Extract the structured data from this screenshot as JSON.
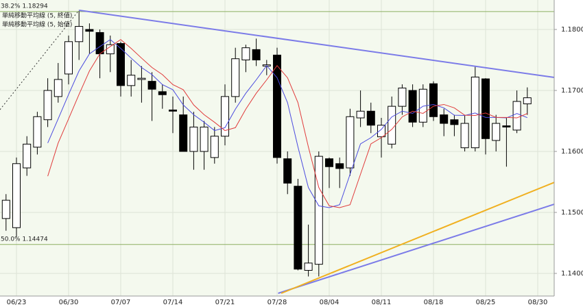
{
  "chart_data": {
    "type": "candlestick",
    "categories": [
      null,
      "06/23",
      null,
      null,
      null,
      null,
      "06/30",
      null,
      null,
      null,
      null,
      "07/07",
      null,
      null,
      null,
      null,
      "07/14",
      null,
      null,
      null,
      null,
      "07/21",
      null,
      null,
      null,
      null,
      "07/28",
      null,
      null,
      null,
      null,
      "08/04",
      null,
      null,
      null,
      null,
      "08/11",
      null,
      null,
      null,
      null,
      "08/18",
      null,
      null,
      null,
      null,
      "08/25",
      null,
      null,
      null,
      null,
      "08/30"
    ],
    "open": [
      1.149,
      1.1475,
      1.1573,
      1.1607,
      1.1652,
      1.169,
      1.1727,
      1.178,
      1.18,
      1.1795,
      1.176,
      1.1777,
      1.1708,
      1.1718,
      1.1715,
      1.1698,
      1.1668,
      1.166,
      1.16,
      1.16,
      1.159,
      1.1625,
      1.169,
      1.175,
      1.1767,
      1.174,
      1.1758,
      1.1588,
      1.1543,
      1.1405,
      1.1415,
      1.1588,
      1.158,
      1.1573,
      1.1655,
      1.1666,
      1.1624,
      1.1612,
      1.1674,
      1.17,
      1.1648,
      1.1711,
      1.166,
      1.1652,
      1.1606,
      1.1606,
      1.1719,
      1.1618,
      1.1642,
      1.1635,
      1.1678,
      null
    ],
    "high": [
      1.153,
      1.159,
      1.1625,
      1.1665,
      1.172,
      1.1745,
      1.179,
      1.183,
      1.181,
      1.18,
      1.179,
      1.178,
      1.175,
      1.174,
      1.173,
      1.171,
      1.169,
      1.169,
      1.1665,
      1.165,
      1.164,
      1.171,
      1.177,
      1.1775,
      1.1785,
      1.175,
      1.177,
      1.16,
      1.1555,
      1.148,
      1.16,
      1.159,
      1.159,
      1.167,
      1.17,
      1.168,
      1.1655,
      1.169,
      1.171,
      1.171,
      1.171,
      1.1715,
      1.167,
      1.166,
      1.166,
      1.174,
      1.172,
      1.166,
      1.1655,
      1.17,
      1.1705,
      null
    ],
    "low": [
      1.147,
      1.146,
      1.156,
      1.1595,
      1.164,
      1.168,
      1.171,
      1.175,
      1.176,
      1.172,
      1.173,
      1.169,
      1.169,
      1.168,
      1.165,
      1.167,
      1.163,
      1.16,
      1.157,
      1.157,
      1.158,
      1.161,
      1.168,
      1.173,
      1.174,
      1.1725,
      1.158,
      1.153,
      1.1405,
      1.1395,
      1.1395,
      1.154,
      1.154,
      1.156,
      1.164,
      1.163,
      1.159,
      1.1605,
      1.166,
      1.164,
      1.164,
      1.165,
      1.1625,
      1.1625,
      1.16,
      1.16,
      1.1595,
      1.16,
      1.1575,
      1.163,
      1.166,
      null
    ],
    "close": [
      1.152,
      1.158,
      1.1612,
      1.1657,
      1.17,
      1.1718,
      1.178,
      1.1805,
      1.1797,
      1.176,
      1.1775,
      1.1708,
      1.1725,
      1.172,
      1.1702,
      1.1693,
      1.1666,
      1.16,
      1.164,
      1.164,
      1.1625,
      1.169,
      1.1752,
      1.177,
      1.175,
      1.1742,
      1.159,
      1.1548,
      1.1407,
      1.1417,
      1.1592,
      1.1575,
      1.1572,
      1.1657,
      1.1666,
      1.1643,
      1.1643,
      1.1674,
      1.1704,
      1.1648,
      1.1702,
      1.1657,
      1.1646,
      1.1644,
      1.1646,
      1.1722,
      1.1621,
      1.1646,
      1.164,
      1.1682,
      1.1688,
      null
    ],
    "series": [
      {
        "name": "単純移動平均線 (5, 終値)",
        "color": "#4a4adf",
        "values": [
          null,
          null,
          null,
          null,
          1.16138,
          1.16534,
          1.16934,
          1.1732,
          1.176,
          1.1772,
          1.17834,
          1.1769,
          1.1753,
          1.17376,
          1.1726,
          1.17096,
          1.17012,
          1.16762,
          1.16602,
          1.16478,
          1.16342,
          1.1639,
          1.16694,
          1.16954,
          1.17174,
          1.17408,
          1.17208,
          1.168,
          1.16074,
          1.15408,
          1.15108,
          1.15078,
          1.15126,
          1.15626,
          1.16124,
          1.16226,
          1.16362,
          1.16566,
          1.1666,
          1.16624,
          1.16742,
          1.1677,
          1.16714,
          1.16594,
          1.1659,
          1.1663,
          1.16558,
          1.16558,
          1.1655,
          1.16622,
          1.16554,
          null
        ]
      },
      {
        "name": "単純移動平均線 (5, 始値)",
        "color": "#e03a3a",
        "values": [
          null,
          null,
          null,
          null,
          1.15594,
          1.16138,
          1.16534,
          1.16934,
          1.1732,
          1.176,
          1.1772,
          1.17834,
          1.1769,
          1.1753,
          1.17376,
          1.1726,
          1.17096,
          1.17012,
          1.16762,
          1.16602,
          1.16478,
          1.16342,
          1.1639,
          1.16694,
          1.16954,
          1.17174,
          1.17408,
          1.17208,
          1.168,
          1.16074,
          1.15408,
          1.15108,
          1.15078,
          1.15126,
          1.15626,
          1.16124,
          1.16226,
          1.16362,
          1.16566,
          1.1666,
          1.16624,
          1.16742,
          1.1677,
          1.16714,
          1.16594,
          1.1659,
          1.1663,
          1.16558,
          1.16558,
          1.1655,
          1.16622,
          null
        ]
      }
    ],
    "trend_lines": [
      {
        "color": "#7b7be8",
        "points": [
          [
            7,
            1.18315
          ],
          [
            52.6,
            1.17213
          ]
        ]
      },
      {
        "color": "#7b7be8",
        "points": [
          [
            26.1,
            1.13674
          ],
          [
            52.6,
            1.15135
          ]
        ]
      },
      {
        "color": "#f0b020",
        "points": [
          [
            26.4,
            1.13674
          ],
          [
            52.6,
            1.15494
          ]
        ]
      },
      {
        "color": "#333333",
        "dashed": true,
        "points": [
          [
            -0.58,
            1.16685
          ],
          [
            7,
            1.18315
          ]
        ]
      }
    ],
    "levels": [
      {
        "value": 1.18294,
        "label": "38.2% 1.18294"
      },
      {
        "value": 1.14474,
        "label": "50.0% 1.14474"
      }
    ],
    "ylim": [
      1.13629,
      1.18483
    ],
    "yticks": [
      {
        "value": 1.14,
        "label": "1.14000"
      },
      {
        "value": 1.15,
        "label": "1.15000"
      },
      {
        "value": 1.16,
        "label": "1.16000"
      },
      {
        "value": 1.17,
        "label": "1.17000"
      },
      {
        "value": 1.18,
        "label": "1.18000"
      }
    ],
    "grid": true,
    "legend": "top-left",
    "up_color": "#ffffff",
    "down_color": "#000000"
  }
}
